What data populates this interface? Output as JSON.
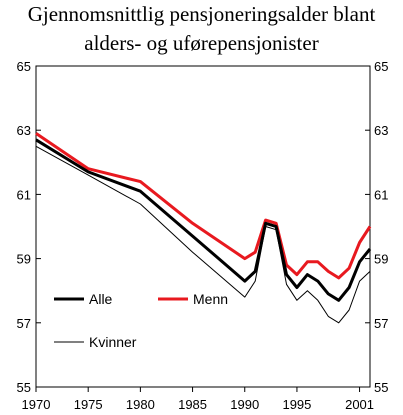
{
  "chart_data": {
    "type": "line",
    "title_lines": [
      "Gjennomsnittlig pensjoneringsalder blant",
      "alders- og uførepensjonister"
    ],
    "xlabel": "",
    "ylabel": "",
    "xlim": [
      1970,
      2002
    ],
    "ylim": [
      55,
      65
    ],
    "x_ticks": [
      1970,
      1975,
      1980,
      1985,
      1990,
      1995,
      2001
    ],
    "y_ticks": [
      55,
      57,
      59,
      61,
      63,
      65
    ],
    "grid": false,
    "legend_position": "bottom-left",
    "series": [
      {
        "name": "Alle",
        "color": "#000000",
        "style": "thick",
        "x": [
          1970,
          1975,
          1980,
          1985,
          1990,
          1991,
          1992,
          1993,
          1994,
          1995,
          1996,
          1997,
          1998,
          1999,
          2000,
          2001,
          2002
        ],
        "y": [
          62.7,
          61.7,
          61.1,
          59.7,
          58.3,
          58.6,
          60.1,
          60.0,
          58.5,
          58.1,
          58.5,
          58.3,
          57.9,
          57.7,
          58.1,
          58.9,
          59.3
        ]
      },
      {
        "name": "Menn",
        "color": "#e8191f",
        "style": "thick",
        "x": [
          1970,
          1975,
          1980,
          1985,
          1990,
          1991,
          1992,
          1993,
          1994,
          1995,
          1996,
          1997,
          1998,
          1999,
          2000,
          2001,
          2002
        ],
        "y": [
          62.9,
          61.8,
          61.4,
          60.1,
          59.0,
          59.2,
          60.2,
          60.1,
          58.8,
          58.5,
          58.9,
          58.9,
          58.6,
          58.4,
          58.7,
          59.5,
          60.0
        ]
      },
      {
        "name": "Kvinner",
        "color": "#000000",
        "style": "thin",
        "x": [
          1970,
          1975,
          1980,
          1985,
          1990,
          1991,
          1992,
          1993,
          1994,
          1995,
          1996,
          1997,
          1998,
          1999,
          2000,
          2001,
          2002
        ],
        "y": [
          62.5,
          61.6,
          60.7,
          59.2,
          57.8,
          58.3,
          60.0,
          59.9,
          58.2,
          57.7,
          58.0,
          57.7,
          57.2,
          57.0,
          57.4,
          58.3,
          58.6
        ]
      }
    ]
  }
}
